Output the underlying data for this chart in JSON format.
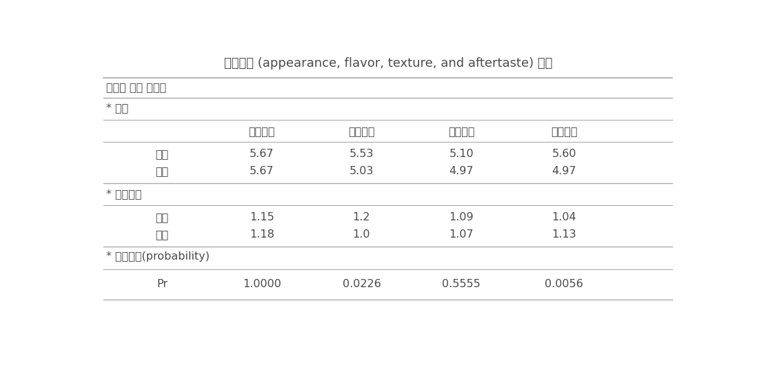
{
  "title": "세부기호 (appearance, flavor, texture, and aftertaste) 분석",
  "section1_label": "기호도 요약 테이블",
  "section2_label": "* 평균",
  "section3_label": "* 표준편차",
  "section4_label": "* 유의확률(probability)",
  "col_headers": [
    "외관기호",
    "향미기호",
    "식감기호",
    "뒷맛기호"
  ],
  "row_labels": [
    "기본",
    "미강"
  ],
  "mean_values": [
    [
      "5.67",
      "5.53",
      "5.10",
      "5.60"
    ],
    [
      "5.67",
      "5.03",
      "4.97",
      "4.97"
    ]
  ],
  "std_values": [
    [
      "1.15",
      "1.2",
      "1.09",
      "1.04"
    ],
    [
      "1.18",
      "1.0",
      "1.07",
      "1.13"
    ]
  ],
  "prob_row_label": "Pr",
  "prob_values": [
    "1.0000",
    "0.0226",
    "0.5555",
    "0.0056"
  ],
  "bg_color": "#ffffff",
  "text_color": "#4a4a4a",
  "line_color": "#aaaaaa",
  "title_fontsize": 13,
  "body_fontsize": 11.5
}
